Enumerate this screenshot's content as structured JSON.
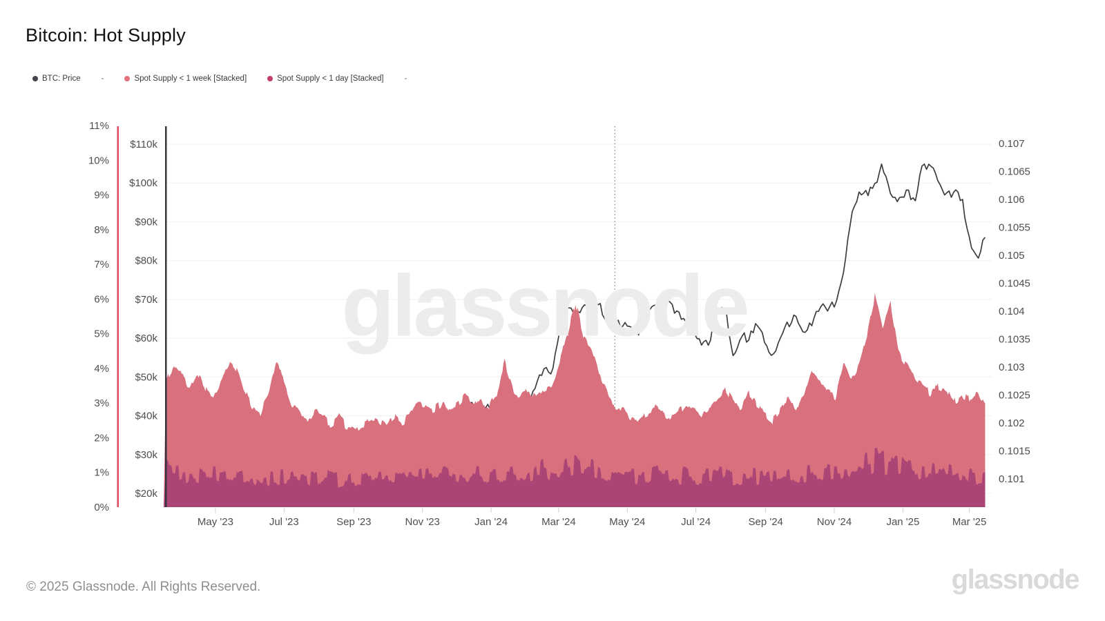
{
  "title": "Bitcoin: Hot Supply",
  "watermark": "glassnode",
  "footer": {
    "copyright": "© 2025 Glassnode. All Rights Reserved.",
    "logo": "glassnode"
  },
  "legend": {
    "items": [
      {
        "type": "series",
        "label": "BTC: Price",
        "color": "#45454d"
      },
      {
        "type": "dash",
        "label": "-"
      },
      {
        "type": "series",
        "label": "Spot Supply < 1 week [Stacked]",
        "color": "#e4707f"
      },
      {
        "type": "series",
        "label": "Spot Supply < 1 day [Stacked]",
        "color": "#c2406f"
      },
      {
        "type": "dash",
        "label": "-"
      }
    ]
  },
  "chart_data": {
    "type": "line+stacked-area",
    "title": "Bitcoin: Hot Supply",
    "grid": true,
    "legend_position": "top-left",
    "marker": {
      "date": "2024-04-20",
      "style": "dotted-vertical-line"
    },
    "start_date": "2023-03-18",
    "step_days": 7,
    "axes": {
      "percent_left": {
        "axis_color": "#e1485c",
        "labels": [
          "0%",
          "1%",
          "2%",
          "3%",
          "4%",
          "5%",
          "6%",
          "7%",
          "8%",
          "9%",
          "10%",
          "11%"
        ],
        "values": [
          0,
          1,
          2,
          3,
          4,
          5,
          6,
          7,
          8,
          9,
          10,
          11
        ],
        "range": [
          0,
          11
        ]
      },
      "price_left": {
        "axis_color": "#34343c",
        "labels": [
          "$20k",
          "$30k",
          "$40k",
          "$50k",
          "$60k",
          "$70k",
          "$80k",
          "$90k",
          "$100k",
          "$110k"
        ],
        "values": [
          20,
          30,
          40,
          50,
          60,
          70,
          80,
          90,
          100,
          110
        ],
        "range_usd_thousands": [
          20,
          110
        ]
      },
      "right": {
        "labels": [
          "0.107",
          "0.1065",
          "0.106",
          "0.1055",
          "0.105",
          "0.1045",
          "0.104",
          "0.1035",
          "0.103",
          "0.1025",
          "0.102",
          "0.1015",
          "0.101"
        ]
      },
      "x": {
        "domain": [
          "2023-03-16",
          "2025-03-16"
        ],
        "ticks": [
          {
            "label": "May '23",
            "date": "2023-05-01"
          },
          {
            "label": "Jul '23",
            "date": "2023-07-01"
          },
          {
            "label": "Sep '23",
            "date": "2023-09-01"
          },
          {
            "label": "Nov '23",
            "date": "2023-11-01"
          },
          {
            "label": "Jan '24",
            "date": "2024-01-01"
          },
          {
            "label": "Mar '24",
            "date": "2024-03-01"
          },
          {
            "label": "May '24",
            "date": "2024-05-01"
          },
          {
            "label": "Jul '24",
            "date": "2024-07-01"
          },
          {
            "label": "Sep '24",
            "date": "2024-09-01"
          },
          {
            "label": "Nov '24",
            "date": "2024-11-01"
          },
          {
            "label": "Jan '25",
            "date": "2025-01-01"
          },
          {
            "label": "Mar '25",
            "date": "2025-03-01"
          }
        ]
      }
    },
    "series": [
      {
        "name": "BTC: Price",
        "render": "line",
        "axis": "price_left",
        "color": "#3d3d3d",
        "units": "USD (thousands), weekly",
        "values": [
          26.6,
          27.6,
          28.2,
          28.0,
          30.3,
          27.8,
          29.3,
          28.9,
          26.9,
          27.1,
          26.8,
          27.2,
          25.9,
          26.5,
          30.5,
          30.6,
          30.3,
          30.2,
          29.9,
          29.3,
          29.0,
          29.4,
          26.1,
          26.0,
          25.9,
          25.9,
          26.6,
          26.6,
          27.0,
          27.9,
          26.9,
          29.9,
          34.1,
          35.1,
          37.1,
          36.6,
          37.8,
          38.7,
          43.8,
          42.3,
          43.7,
          42.2,
          43.9,
          42.8,
          41.7,
          42.1,
          43.2,
          47.5,
          52.1,
          51.7,
          62.0,
          68.3,
          65.3,
          67.2,
          69.6,
          69.4,
          63.9,
          64.9,
          63.1,
          64.0,
          60.8,
          66.9,
          68.5,
          67.8,
          69.3,
          66.2,
          64.3,
          61.0,
          58.2,
          59.2,
          67.1,
          67.9,
          55.5,
          60.9,
          59.5,
          64.1,
          58.9,
          54.3,
          60.0,
          63.6,
          65.6,
          62.1,
          63.2,
          68.4,
          67.0,
          69.3,
          76.7,
          91.0,
          97.7,
          97.5,
          99.9,
          104.5,
          97.2,
          95.2,
          98.2,
          94.6,
          104.4,
          104.8,
          100.6,
          96.5,
          97.6,
          96.3,
          86.0,
          80.0,
          86.0
        ]
      },
      {
        "name": "Spot Supply < 1 week [Stacked]",
        "render": "area",
        "axis": "percent_left",
        "color": "#d8707e",
        "units": "% of supply, stacked total (includes < 1 day band below it), weekly",
        "values": [
          3.6,
          4.05,
          3.8,
          3.5,
          3.9,
          3.4,
          3.1,
          3.6,
          4.2,
          3.9,
          3.3,
          2.9,
          2.7,
          3.3,
          4.25,
          3.6,
          3.0,
          2.7,
          2.5,
          2.8,
          2.6,
          2.4,
          2.6,
          2.3,
          2.2,
          2.4,
          2.6,
          2.5,
          2.3,
          2.6,
          2.4,
          2.7,
          3.0,
          2.9,
          2.8,
          3.0,
          2.8,
          3.0,
          3.2,
          2.9,
          3.1,
          2.9,
          3.3,
          4.15,
          3.4,
          3.15,
          3.4,
          3.2,
          3.4,
          3.5,
          4.2,
          5.0,
          5.9,
          4.9,
          4.6,
          3.8,
          3.3,
          2.9,
          2.8,
          2.6,
          2.5,
          2.7,
          2.9,
          2.7,
          2.5,
          2.7,
          3.0,
          2.8,
          2.6,
          2.9,
          3.2,
          3.4,
          3.1,
          2.8,
          3.3,
          3.0,
          2.7,
          2.5,
          2.8,
          3.1,
          2.9,
          3.3,
          4.0,
          3.7,
          3.4,
          3.2,
          4.2,
          3.6,
          4.1,
          5.0,
          6.1,
          5.2,
          5.9,
          4.4,
          4.1,
          3.8,
          3.5,
          3.3,
          3.5,
          3.4,
          3.0,
          3.2,
          3.1,
          3.3,
          2.9
        ]
      },
      {
        "name": "Spot Supply < 1 day [Stacked]",
        "render": "area",
        "axis": "percent_left",
        "color": "#ab4576",
        "units": "% of supply, bottom band of stack, weekly",
        "values": [
          1.05,
          0.95,
          0.9,
          0.95,
          0.9,
          0.85,
          0.9,
          0.85,
          0.8,
          0.85,
          0.9,
          0.85,
          0.8,
          0.85,
          0.8,
          0.85,
          0.9,
          0.85,
          0.8,
          0.8,
          0.85,
          0.8,
          0.75,
          0.8,
          0.85,
          0.8,
          0.85,
          0.9,
          0.85,
          0.9,
          0.95,
          0.9,
          0.85,
          0.9,
          0.95,
          1.0,
          0.95,
          0.9,
          0.95,
          1.0,
          0.95,
          0.9,
          0.95,
          1.0,
          0.95,
          0.9,
          0.95,
          1.0,
          1.05,
          1.0,
          1.1,
          1.25,
          1.2,
          1.1,
          1.15,
          1.05,
          1.0,
          0.95,
          0.9,
          0.95,
          0.9,
          0.85,
          0.9,
          0.95,
          0.9,
          0.85,
          0.9,
          0.85,
          0.8,
          0.85,
          0.9,
          0.95,
          0.9,
          0.85,
          0.9,
          0.85,
          0.8,
          0.85,
          0.9,
          0.95,
          0.9,
          0.95,
          1.0,
          0.95,
          1.0,
          1.05,
          1.1,
          1.05,
          1.1,
          1.2,
          1.3,
          1.25,
          1.15,
          1.1,
          1.05,
          1.0,
          1.05,
          1.1,
          1.05,
          1.0,
          0.95,
          1.0,
          0.95,
          0.9,
          0.9
        ]
      }
    ]
  }
}
